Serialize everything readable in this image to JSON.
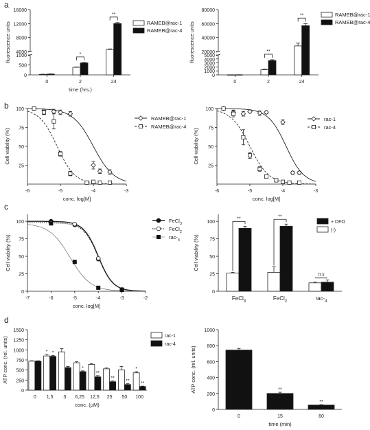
{
  "panel_labels": [
    "a",
    "b",
    "c",
    "d"
  ],
  "chart_data": [
    {
      "id": "a-left",
      "type": "bar",
      "panel": "a",
      "categories": [
        "0",
        "2",
        "24"
      ],
      "xlabel": "time (hrs.)",
      "ylabel": "fluorescence units",
      "yticks_lower": [
        "0",
        "500",
        "1000"
      ],
      "yticks_upper": [
        "4000",
        "8000",
        "12000",
        "16000"
      ],
      "series": [
        {
          "name": "RAMEB@rac-1",
          "fill": "#ffffff",
          "values": [
            25,
            380,
            4600
          ],
          "errors": [
            10,
            20,
            150
          ]
        },
        {
          "name": "RAMEB@rac-4",
          "fill": "#111111",
          "values": [
            40,
            600,
            12000
          ],
          "errors": [
            10,
            25,
            300
          ]
        }
      ],
      "significance": [
        {
          "category": "2",
          "label": "*"
        },
        {
          "category": "24",
          "label": "**"
        }
      ],
      "ylim_lower": [
        0,
        1000
      ],
      "ylim_upper": [
        4000,
        16000
      ]
    },
    {
      "id": "a-right",
      "type": "bar",
      "panel": "a",
      "categories": [
        "0",
        "2",
        "24"
      ],
      "xlabel": "time",
      "ylabel": "fluorescence units",
      "yticks_lower": [
        "0",
        "1000",
        "2000",
        "3000",
        "4000",
        "5000"
      ],
      "yticks_upper": [
        "20000",
        "40000",
        "60000",
        "80000"
      ],
      "series": [
        {
          "name": "RAMEB@rac-1",
          "fill": "#ffffff",
          "values": [
            20,
            1300,
            28000
          ],
          "errors": [
            10,
            150,
            4000
          ]
        },
        {
          "name": "RAMEB@rac-4",
          "fill": "#111111",
          "values": [
            30,
            3600,
            57000
          ],
          "errors": [
            10,
            200,
            3000
          ]
        }
      ],
      "significance": [
        {
          "category": "2",
          "label": "**"
        },
        {
          "category": "24",
          "label": "**"
        }
      ],
      "ylim_lower": [
        0,
        5000
      ],
      "ylim_upper": [
        20000,
        80000
      ]
    },
    {
      "id": "b-left",
      "type": "scatter",
      "panel": "b",
      "xlabel": "conc. log[M]",
      "ylabel": "Cell viability (%)",
      "xticks": [
        "-6",
        "-5",
        "-4",
        "-3"
      ],
      "yticks": [
        "25",
        "50",
        "75",
        "100"
      ],
      "xlim": [
        -6,
        -3
      ],
      "ylim": [
        0,
        100
      ],
      "series": [
        {
          "name": "RAMEB@rac-1",
          "marker": "diamond",
          "curve": "solid",
          "ic50": -4.0,
          "hill": 1.4,
          "x": [
            -5.8,
            -5.5,
            -5.2,
            -5.0,
            -4.7,
            -4.0,
            -3.8,
            -3.5
          ],
          "y": [
            100,
            97,
            96,
            95,
            93,
            25,
            17,
            16
          ],
          "errors": [
            0,
            2,
            3,
            3,
            3,
            5,
            3,
            3
          ]
        },
        {
          "name": "RAMEB@rac-4",
          "marker": "square",
          "curve": "dashed",
          "ic50": -5.1,
          "hill": 1.6,
          "x": [
            -5.8,
            -5.5,
            -5.2,
            -5.0,
            -4.7,
            -4.2,
            -4.0,
            -3.8,
            -3.5
          ],
          "y": [
            100,
            95,
            83,
            40,
            14,
            2,
            3,
            2,
            2
          ],
          "errors": [
            0,
            3,
            10,
            3,
            3,
            1,
            1,
            1,
            1
          ]
        }
      ]
    },
    {
      "id": "b-right",
      "type": "scatter",
      "panel": "b",
      "xlabel": "conc. log[M]",
      "ylabel": "Cell viability (%)",
      "xticks": [
        "-6",
        "-5",
        "-4",
        "-3"
      ],
      "yticks": [
        "25",
        "50",
        "75",
        "100"
      ],
      "xlim": [
        -6,
        -3
      ],
      "ylim": [
        0,
        100
      ],
      "series": [
        {
          "name": "rac-1",
          "marker": "diamond",
          "curve": "solid",
          "ic50": -3.9,
          "hill": 1.6,
          "x": [
            -5.8,
            -5.5,
            -5.2,
            -5.0,
            -4.7,
            -4.5,
            -4.0,
            -3.7,
            -3.5
          ],
          "y": [
            100,
            95,
            93,
            96,
            94,
            95,
            82,
            15,
            15
          ],
          "errors": [
            0,
            3,
            3,
            2,
            3,
            2,
            3,
            2,
            2
          ]
        },
        {
          "name": "rac-4",
          "marker": "square",
          "curve": "dashed",
          "ic50": -5.0,
          "hill": 1.5,
          "x": [
            -5.8,
            -5.5,
            -5.2,
            -5.0,
            -4.7,
            -4.5,
            -4.2,
            -4.0,
            -3.8,
            -3.5
          ],
          "y": [
            100,
            93,
            62,
            38,
            20,
            10,
            5,
            3,
            2,
            2
          ],
          "errors": [
            0,
            4,
            10,
            4,
            3,
            2,
            1,
            1,
            1,
            1
          ]
        }
      ]
    },
    {
      "id": "c-left",
      "type": "line",
      "panel": "c",
      "xlabel": "conc. log[M]",
      "ylabel": "Cell viability (%)",
      "xticks": [
        "-7",
        "-6",
        "-5",
        "-4",
        "-3",
        "-2"
      ],
      "yticks": [
        "0",
        "25",
        "50",
        "75",
        "100"
      ],
      "xlim": [
        -7,
        -2
      ],
      "ylim": [
        0,
        110
      ],
      "series": [
        {
          "name": "FeCl3",
          "marker": "circle-filled",
          "curve": "solid-bold",
          "ic50": -4.0,
          "hill": 1.4,
          "x": [
            -6,
            -5,
            -4,
            -3
          ],
          "y": [
            100,
            95,
            46,
            2
          ]
        },
        {
          "name": "FeCl2",
          "marker": "circle-open",
          "curve": "dotted",
          "ic50": -4.0,
          "hill": 1.4,
          "x": [
            -6,
            -5,
            -4,
            -3
          ],
          "y": [
            98,
            96,
            47,
            3
          ]
        },
        {
          "name": "rac-4",
          "marker": "square-filled",
          "curve": "thin",
          "ic50": -5.2,
          "hill": 1.0,
          "x": [
            -6,
            -5,
            -4,
            -3
          ],
          "y": [
            97,
            42,
            5,
            2
          ]
        }
      ]
    },
    {
      "id": "c-right",
      "type": "bar",
      "panel": "c",
      "categories": [
        "FeCl3",
        "FeCl2",
        "rac-4"
      ],
      "ylabel": "Cell viability (%)",
      "yticks": [
        "0",
        "25",
        "50",
        "75",
        "100"
      ],
      "ylim": [
        0,
        110
      ],
      "series": [
        {
          "name": "(-)",
          "fill": "#ffffff",
          "values": [
            26,
            27,
            12
          ],
          "errors": [
            1,
            8,
            1
          ]
        },
        {
          "name": "+ DFO",
          "fill": "#111111",
          "values": [
            90,
            93,
            13
          ],
          "errors": [
            3,
            3,
            3
          ]
        }
      ],
      "significance": [
        {
          "category": "FeCl3",
          "label": "**"
        },
        {
          "category": "FeCl2",
          "label": "**"
        },
        {
          "category": "rac-4",
          "label": "n.s"
        }
      ]
    },
    {
      "id": "d-left",
      "type": "bar",
      "panel": "d",
      "categories": [
        "0",
        "1,5",
        "3",
        "6,25",
        "12,5",
        "25",
        "50",
        "100"
      ],
      "xlabel": "conc. (µM)",
      "ylabel": "ATP conc. (rel. units)",
      "yticks": [
        "0",
        "250",
        "500",
        "750",
        "1000",
        "1250",
        "1500"
      ],
      "ylim": [
        0,
        1500
      ],
      "series": [
        {
          "name": "rac-1",
          "fill": "#ffffff",
          "values": [
            720,
            850,
            950,
            680,
            640,
            530,
            500,
            430
          ],
          "errors": [
            10,
            40,
            80,
            25,
            20,
            20,
            90,
            30
          ],
          "stars": [
            "",
            "*",
            "",
            "",
            "",
            "",
            "",
            "*"
          ]
        },
        {
          "name": "rac-4",
          "fill": "#111111",
          "values": [
            720,
            840,
            560,
            460,
            330,
            210,
            140,
            90
          ],
          "errors": [
            10,
            20,
            30,
            20,
            30,
            20,
            20,
            10
          ],
          "stars": [
            "",
            "*",
            "",
            "*",
            "**",
            "**",
            "**",
            "**"
          ]
        }
      ]
    },
    {
      "id": "d-right",
      "type": "bar",
      "panel": "d",
      "categories": [
        "0",
        "15",
        "60"
      ],
      "xlabel": "time (min)",
      "ylabel": "ATP conc. (rel. units)",
      "yticks": [
        "0",
        "200",
        "400",
        "600",
        "800",
        "1000"
      ],
      "ylim": [
        0,
        1000
      ],
      "series": [
        {
          "name": "",
          "fill": "#111111",
          "values": [
            745,
            200,
            55
          ],
          "errors": [
            20,
            15,
            5
          ],
          "stars": [
            "",
            "**",
            "**"
          ]
        }
      ]
    }
  ]
}
